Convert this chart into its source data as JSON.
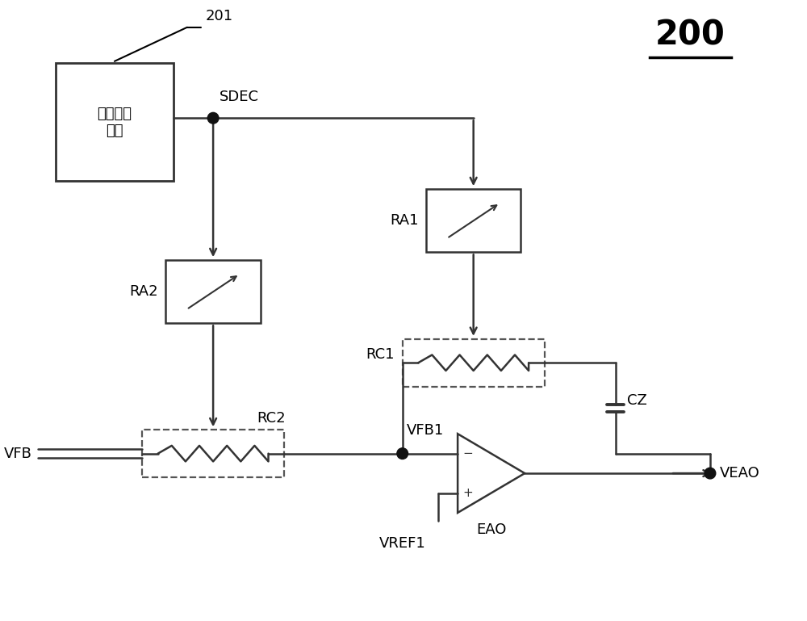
{
  "title": "200",
  "label_201": "201",
  "box_201_label": "瞬态检测\n电路",
  "sdec_label": "SDEC",
  "ra1_label": "RA1",
  "ra2_label": "RA2",
  "rc1_label": "RC1",
  "rc2_label": "RC2",
  "cz_label": "CZ",
  "vfb_label": "VFB",
  "vfb1_label": "VFB1",
  "vref1_label": "VREF1",
  "eao_label": "EAO",
  "veao_label": "VEAO",
  "line_color": "#333333",
  "dashed_color": "#555555",
  "bg_color": "#ffffff",
  "dot_color": "#111111"
}
